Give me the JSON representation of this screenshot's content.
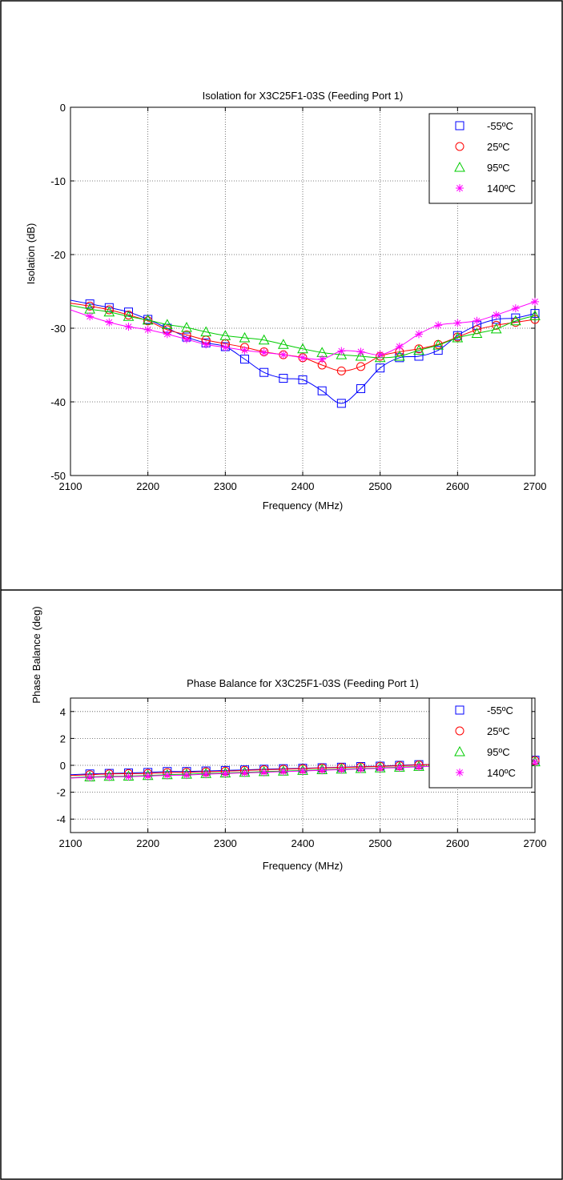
{
  "chart_data": [
    {
      "type": "line",
      "title": "Isolation for X3C25F1-03S (Feeding Port 1)",
      "xlabel": "Frequency (MHz)",
      "ylabel": "Isolation (dB)",
      "xlim": [
        2100,
        2700
      ],
      "ylim": [
        -50,
        0
      ],
      "xticks": [
        "2100",
        "2200",
        "2300",
        "2400",
        "2500",
        "2600",
        "2700"
      ],
      "yticks": [
        "0",
        "-10",
        "-20",
        "-30",
        "-40",
        "-50"
      ],
      "grid": true,
      "legend_position": "top-right",
      "x": [
        2100,
        2125,
        2150,
        2175,
        2200,
        2225,
        2250,
        2275,
        2300,
        2325,
        2350,
        2375,
        2400,
        2425,
        2450,
        2475,
        2500,
        2525,
        2550,
        2575,
        2600,
        2625,
        2650,
        2675,
        2700
      ],
      "series": [
        {
          "name": "-55ºC",
          "color": "#0000ff",
          "marker": "square",
          "values": [
            -26.2,
            -26.7,
            -27.2,
            -27.8,
            -28.8,
            -30.0,
            -31.2,
            -32.0,
            -32.5,
            -34.2,
            -36.0,
            -36.8,
            -37.0,
            -38.5,
            -40.2,
            -38.2,
            -35.4,
            -34.0,
            -33.8,
            -33.0,
            -31.0,
            -29.6,
            -28.8,
            -28.6,
            -28.0
          ]
        },
        {
          "name": "25ºC",
          "color": "#ff0000",
          "marker": "circle",
          "values": [
            -26.6,
            -27.0,
            -27.5,
            -28.2,
            -29.0,
            -30.2,
            -30.9,
            -31.6,
            -32.1,
            -32.6,
            -33.2,
            -33.6,
            -34.0,
            -35.0,
            -35.8,
            -35.2,
            -33.8,
            -33.2,
            -32.8,
            -32.2,
            -31.2,
            -30.2,
            -29.6,
            -29.2,
            -28.8
          ]
        },
        {
          "name": "95ºC",
          "color": "#00cc00",
          "marker": "triangle",
          "values": [
            -26.9,
            -27.4,
            -27.8,
            -28.4,
            -28.9,
            -29.5,
            -29.9,
            -30.5,
            -31.0,
            -31.3,
            -31.6,
            -32.2,
            -32.8,
            -33.3,
            -33.6,
            -33.8,
            -34.0,
            -33.8,
            -33.0,
            -32.3,
            -31.3,
            -30.7,
            -30.1,
            -29.0,
            -28.3
          ]
        },
        {
          "name": "140ºC",
          "color": "#ff00ff",
          "marker": "star",
          "values": [
            -27.5,
            -28.4,
            -29.2,
            -29.8,
            -30.2,
            -30.8,
            -31.5,
            -32.2,
            -32.6,
            -33.0,
            -33.3,
            -33.6,
            -34.0,
            -34.2,
            -33.1,
            -33.2,
            -33.6,
            -32.5,
            -30.8,
            -29.6,
            -29.3,
            -29.0,
            -28.2,
            -27.3,
            -26.4
          ]
        }
      ]
    },
    {
      "type": "line",
      "title": "Phase Balance for X3C25F1-03S (Feeding Port 1)",
      "xlabel": "Frequency (MHz)",
      "ylabel": "Phase Balance (deg)",
      "xlim": [
        2100,
        2700
      ],
      "ylim": [
        -5,
        5
      ],
      "xticks": [
        "2100",
        "2200",
        "2300",
        "2400",
        "2500",
        "2600",
        "2700"
      ],
      "yticks": [
        "4",
        "2",
        "0",
        "-2",
        "-4"
      ],
      "grid": true,
      "legend_position": "top-right",
      "x": [
        2100,
        2125,
        2150,
        2175,
        2200,
        2225,
        2250,
        2275,
        2300,
        2325,
        2350,
        2375,
        2400,
        2425,
        2450,
        2475,
        2500,
        2525,
        2550,
        2575,
        2600,
        2625,
        2650,
        2675,
        2700
      ],
      "series": [
        {
          "name": "-55ºC",
          "color": "#0000ff",
          "marker": "square",
          "values": [
            -0.7,
            -0.64,
            -0.6,
            -0.57,
            -0.53,
            -0.46,
            -0.46,
            -0.42,
            -0.38,
            -0.34,
            -0.29,
            -0.25,
            -0.22,
            -0.18,
            -0.14,
            -0.09,
            -0.06,
            0.0,
            0.05,
            0.08,
            0.15,
            0.22,
            0.28,
            0.32,
            0.38
          ]
        },
        {
          "name": "25ºC",
          "color": "#ff0000",
          "marker": "circle",
          "values": [
            -0.76,
            -0.7,
            -0.64,
            -0.62,
            -0.6,
            -0.54,
            -0.52,
            -0.48,
            -0.44,
            -0.38,
            -0.33,
            -0.29,
            -0.25,
            -0.2,
            -0.16,
            -0.12,
            -0.08,
            -0.03,
            0.03,
            0.08,
            0.14,
            0.2,
            0.25,
            0.31,
            0.35
          ]
        },
        {
          "name": "95ºC",
          "color": "#00cc00",
          "marker": "triangle",
          "values": [
            -0.92,
            -0.86,
            -0.82,
            -0.8,
            -0.76,
            -0.7,
            -0.66,
            -0.61,
            -0.57,
            -0.52,
            -0.47,
            -0.43,
            -0.38,
            -0.33,
            -0.28,
            -0.24,
            -0.19,
            -0.14,
            -0.08,
            -0.04,
            0.02,
            0.08,
            0.14,
            0.2,
            0.26
          ]
        },
        {
          "name": "140ºC",
          "color": "#ff00ff",
          "marker": "star",
          "values": [
            -0.95,
            -0.89,
            -0.86,
            -0.84,
            -0.8,
            -0.75,
            -0.72,
            -0.66,
            -0.61,
            -0.56,
            -0.52,
            -0.47,
            -0.42,
            -0.37,
            -0.32,
            -0.27,
            -0.22,
            -0.17,
            -0.11,
            -0.06,
            0.0,
            0.05,
            0.11,
            0.18,
            0.24
          ]
        }
      ]
    }
  ]
}
